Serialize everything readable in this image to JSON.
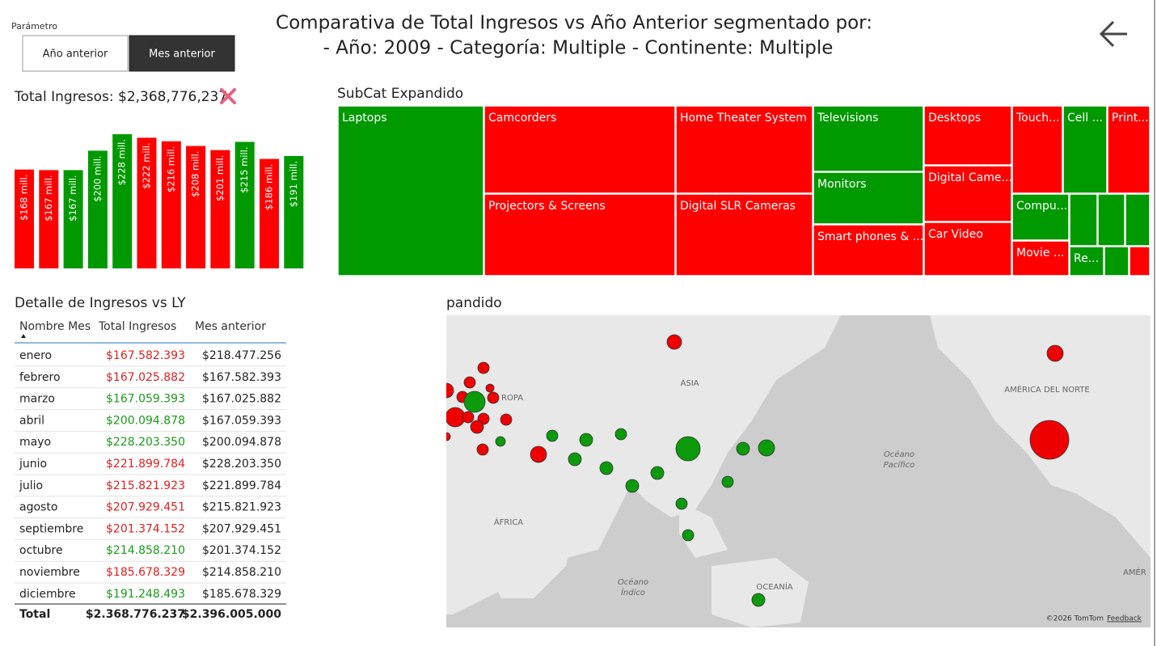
{
  "header": {
    "parameter_label": "Parámetro",
    "buttons": [
      "Año anterior",
      "Mes anterior"
    ],
    "title": [
      "Comparativa de Total Ingresos vs Año Anterior segmentado por:",
      "- Año: 2009 - Categoría: Multiple - Continente: Multiple"
    ]
  },
  "chart_data": {
    "type": "bar",
    "title": "Total Ingresos: $2,368,776,237",
    "values": [
      168,
      167,
      167,
      200,
      228,
      222,
      216,
      208,
      201,
      215,
      186,
      191
    ],
    "value_labels": [
      "$168 mill.",
      "$167 mill.",
      "$167 mill.",
      "$200 mill.",
      "$228 mill.",
      "$222 mill.",
      "$216 mill.",
      "$208 mill.",
      "$201 mill.",
      "$215 mill.",
      "$186 mill.",
      "$191 mill."
    ],
    "colors": [
      "#ff0000",
      "#ff0000",
      "#009900",
      "#009900",
      "#009900",
      "#ff0000",
      "#ff0000",
      "#ff0000",
      "#ff0000",
      "#009900",
      "#ff0000",
      "#009900"
    ]
  },
  "treemap": {
    "title": "SubCat Expandido",
    "tiles": [
      "Laptops",
      "Camcorders",
      "Projectors & Screens",
      "Home Theater System",
      "Digital SLR Cameras",
      "Televisions",
      "Monitors",
      "Smart phones & ...",
      "Desktops",
      "Digital Came...",
      "Car Video",
      "Touch...",
      "Cell ...",
      "Print...",
      "Compu...",
      "Movie ...",
      "Re..."
    ]
  },
  "table": {
    "title": "Detalle de Ingresos vs LY",
    "columns": [
      "Nombre Mes",
      "Total Ingresos",
      "Mes anterior"
    ],
    "rows": [
      [
        "enero",
        "$167.582.393",
        "$218.477.256"
      ],
      [
        "febrero",
        "$167.025.882",
        "$167.582.393"
      ],
      [
        "marzo",
        "$167.059.393",
        "$167.025.882"
      ],
      [
        "abril",
        "$200.094.878",
        "$167.059.393"
      ],
      [
        "mayo",
        "$228.203.350",
        "$200.094.878"
      ],
      [
        "junio",
        "$221.899.784",
        "$228.203.350"
      ],
      [
        "julio",
        "$215.821.923",
        "$221.899.784"
      ],
      [
        "agosto",
        "$207.929.451",
        "$215.821.923"
      ],
      [
        "septiembre",
        "$201.374.152",
        "$207.929.451"
      ],
      [
        "octubre",
        "$214.858.210",
        "$201.374.152"
      ],
      [
        "noviembre",
        "$185.678.329",
        "$214.858.210"
      ],
      [
        "diciembre",
        "$191.248.493",
        "$185.678.329"
      ]
    ],
    "row_colors": [
      "#e02020",
      "#e02020",
      "#1a9a1a",
      "#1a9a1a",
      "#1a9a1a",
      "#e02020",
      "#e02020",
      "#e02020",
      "#e02020",
      "#1a9a1a",
      "#e02020",
      "#1a9a1a"
    ],
    "total": [
      "Total",
      "$2.368.776.237",
      "$2.396.005.000"
    ]
  },
  "map": {
    "title": "pandido",
    "labels": [
      "ASIA",
      "ROPA",
      "ÁFRICA",
      "AMÉRICA DEL NORTE",
      "Océano",
      "Pacífico",
      "Océano",
      "Índico",
      "OCEANÍA",
      "AMÉR"
    ],
    "attribution": "©2026 TomTom",
    "feedback": "Feedback"
  }
}
